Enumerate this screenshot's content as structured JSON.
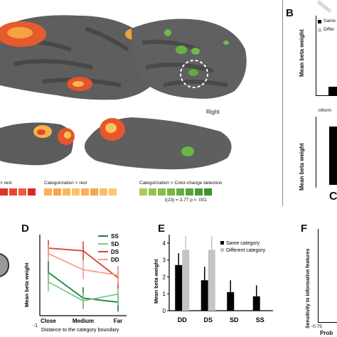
{
  "panels": {
    "B": {
      "letter": "B",
      "legend": [
        "Same",
        "Differ"
      ],
      "ylabel_top": "Mean beta weight",
      "ylabel_bottom": "Mean beta weight",
      "sub_label": "inform",
      "bottom_letter_fragment": "C"
    },
    "D": {
      "letter": "D"
    },
    "E": {
      "letter": "E"
    },
    "F": {
      "letter": "F",
      "ylabel": "Sensitivity to informative features",
      "xtick": "-0.75",
      "xlabel_fragment": "Prob"
    }
  },
  "brain": {
    "right_label": "Right",
    "legend_rest": "> rest",
    "legend_categorization": "Categorization > rest",
    "legend_color_change": "Categorization > Color-change detection",
    "stat": "t(23) = 3.77 p < .001",
    "colors_red": [
      "#e0342a",
      "#e8472f",
      "#ee5b35",
      "#d9282a"
    ],
    "colors_orange": [
      "#f6b15a",
      "#f8a64f",
      "#f7b862",
      "#f9c36c",
      "#f7b258",
      "#f5a748",
      "#f8bd64",
      "#f8c874"
    ],
    "colors_green": [
      "#a4cd5c",
      "#93c452",
      "#86bc4c",
      "#78b447",
      "#67ac42",
      "#58a33c",
      "#4a9a37",
      "#3e9233"
    ]
  },
  "chart_data": [
    {
      "type": "line",
      "panel": "D",
      "title": "",
      "xlabel": "Distance to the category boundary",
      "ylabel": "Mean beta weight",
      "categories": [
        "Close",
        "Medium",
        "Far"
      ],
      "yticks": [
        "-1"
      ],
      "ylim": [
        -1,
        5
      ],
      "series": [
        {
          "name": "SS",
          "color": "#1a7a3a",
          "values": [
            2.2,
            0.3,
            0.0
          ],
          "err": [
            0.9,
            0.8,
            0.7
          ]
        },
        {
          "name": "SD",
          "color": "#7fc98a",
          "values": [
            1.5,
            0.1,
            0.6
          ],
          "err": [
            0.7,
            0.6,
            0.8
          ]
        },
        {
          "name": "DS",
          "color": "#d9423a",
          "values": [
            4.0,
            3.8,
            1.8
          ],
          "err": [
            0.6,
            0.7,
            0.8
          ]
        },
        {
          "name": "DD",
          "color": "#f1a08d",
          "values": [
            3.6,
            2.4,
            2.0
          ],
          "err": [
            0.6,
            0.7,
            0.7
          ]
        }
      ]
    },
    {
      "type": "bar",
      "panel": "E",
      "title": "",
      "xlabel": "",
      "ylabel": "Mean beta weight",
      "categories": [
        "DD",
        "DS",
        "SD",
        "SS"
      ],
      "yticks": [
        "0",
        "1",
        "2",
        "3",
        "4"
      ],
      "ylim": [
        0,
        4.5
      ],
      "series": [
        {
          "name": "Same category",
          "color": "#000000",
          "values": [
            2.7,
            1.8,
            1.1,
            0.85
          ],
          "err": [
            0.7,
            0.8,
            0.7,
            0.65
          ]
        },
        {
          "name": "Different category",
          "color": "#c4c4c4",
          "values": [
            3.6,
            3.6,
            null,
            null
          ],
          "err": [
            0.8,
            0.8,
            null,
            null
          ]
        }
      ]
    }
  ]
}
